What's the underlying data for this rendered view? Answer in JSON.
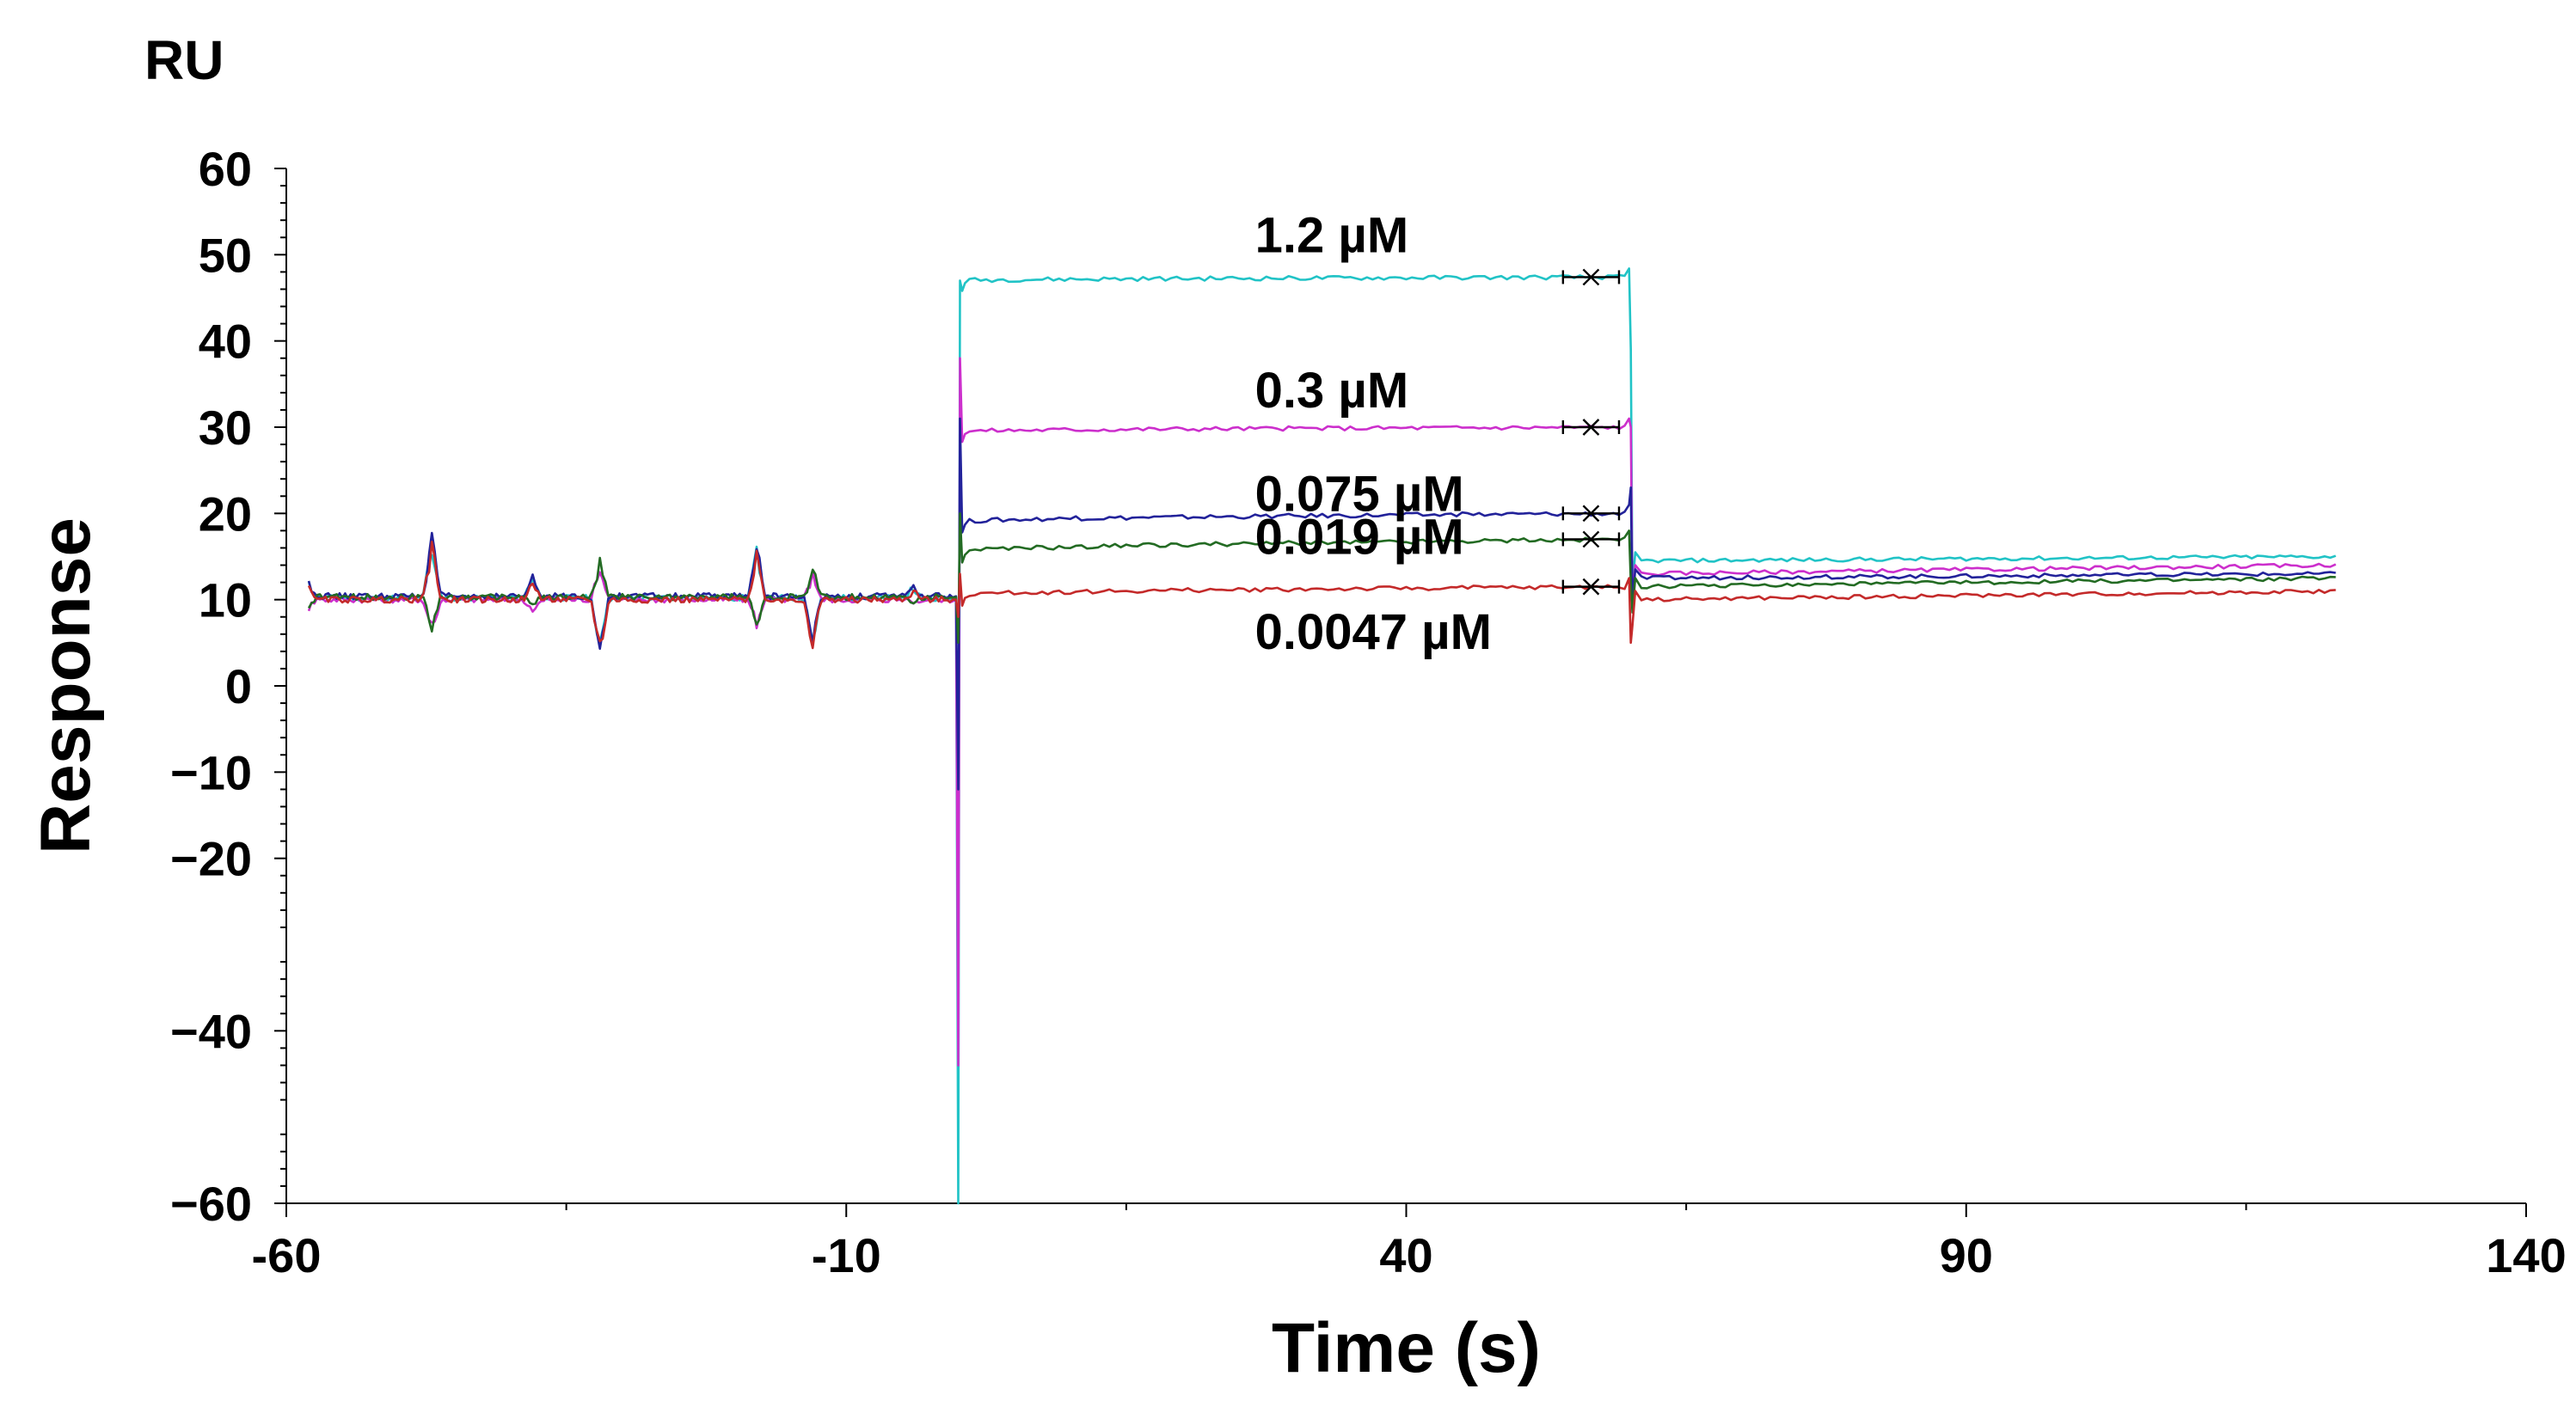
{
  "chart_data": {
    "type": "line",
    "title": "",
    "unit_label": "RU",
    "xlabel": "Time (s)",
    "ylabel": "Response",
    "xlim": [
      -60,
      140
    ],
    "ylim": [
      -60,
      60
    ],
    "x_ticks": [
      -60,
      -10,
      40,
      90,
      140
    ],
    "x_tick_labels": [
      "-60",
      "-10",
      "40",
      "90",
      "140"
    ],
    "y_ticks": [
      60,
      50,
      40,
      30,
      20,
      10,
      0,
      -10,
      -20,
      -40,
      -60
    ],
    "y_tick_labels": [
      "60",
      "50",
      "40",
      "30",
      "20",
      "10",
      "0",
      "−10",
      "−20",
      "−40",
      "−60"
    ],
    "injection_start": 0,
    "injection_end": 60,
    "end_time": 123,
    "series": [
      {
        "name": "1.2 µM",
        "color": "#21c3c6",
        "baseline": 10.2,
        "plateau": 47.0,
        "plateau_end": 47.4,
        "dissociation": 14.5,
        "final": 15.0,
        "spike_min": -60,
        "spike_max": 47
      },
      {
        "name": "0.3 µM",
        "color": "#cc2fcc",
        "baseline": 10.0,
        "plateau": 29.5,
        "plateau_end": 30.0,
        "dissociation": 13.0,
        "final": 14.0,
        "spike_min": -44,
        "spike_max": 38
      },
      {
        "name": "0.075 µM",
        "color": "#22229a",
        "baseline": 10.4,
        "plateau": 19.0,
        "plateau_end": 20.0,
        "dissociation": 12.5,
        "final": 13.0,
        "spike_min": -12,
        "spike_max": 31
      },
      {
        "name": "0.019 µM",
        "color": "#236b23",
        "baseline": 10.3,
        "plateau": 15.5,
        "plateau_end": 17.0,
        "dissociation": 11.5,
        "final": 12.5,
        "spike_min": 5,
        "spike_max": 20
      },
      {
        "name": "0.0047 µM",
        "color": "#c42a2a",
        "baseline": 10.0,
        "plateau": 10.5,
        "plateau_end": 11.5,
        "dissociation": 10.0,
        "final": 11.0,
        "spike_min": 8,
        "spike_max": 13
      }
    ]
  }
}
